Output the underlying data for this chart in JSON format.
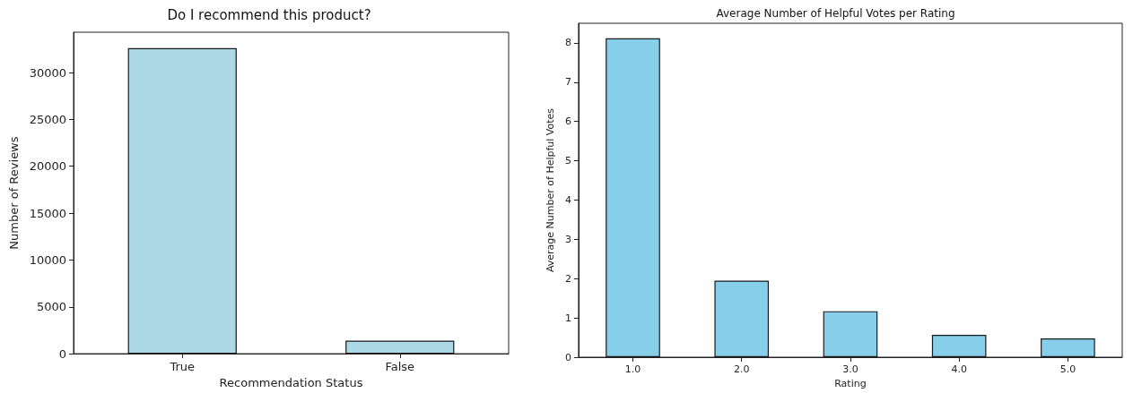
{
  "chart_data": [
    {
      "type": "bar",
      "title": "Do I recommend this product?",
      "xlabel": "Recommendation Status",
      "ylabel": "Number of Reviews",
      "categories": [
        "True",
        "False"
      ],
      "values": [
        32600,
        1400
      ],
      "color": "#add8e6",
      "ylim": [
        0,
        34300
      ],
      "yticks": [
        0,
        5000,
        10000,
        15000,
        20000,
        25000,
        30000
      ]
    },
    {
      "type": "bar",
      "title": "Average Number of Helpful Votes per Rating",
      "xlabel": "Rating",
      "ylabel": "Average Number of Helpful Votes",
      "categories": [
        "1.0",
        "2.0",
        "3.0",
        "4.0",
        "5.0"
      ],
      "values": [
        8.12,
        1.95,
        1.17,
        0.57,
        0.48
      ],
      "color": "#87ceeb",
      "ylim": [
        0,
        8.5
      ],
      "yticks": [
        0,
        1,
        2,
        3,
        4,
        5,
        6,
        7,
        8
      ]
    }
  ]
}
